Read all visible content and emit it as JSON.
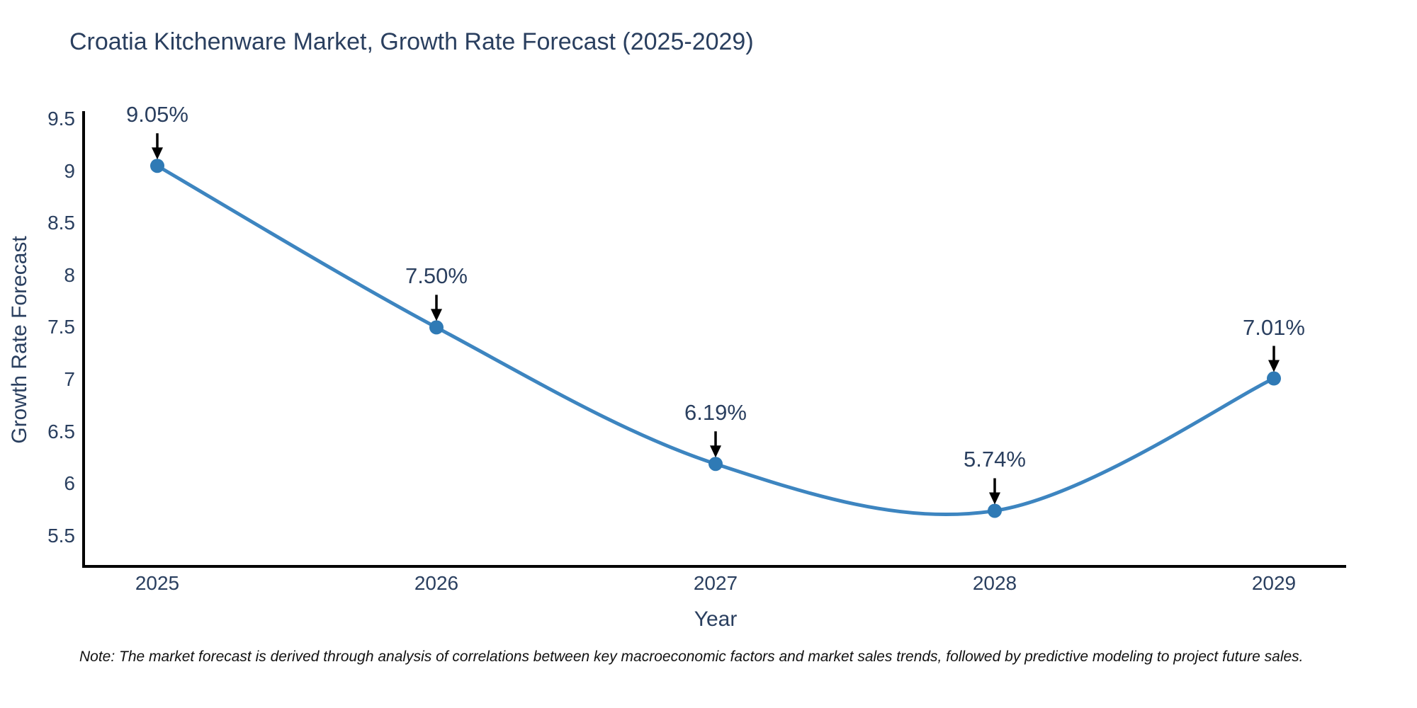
{
  "chart_data": {
    "type": "line",
    "title": "Croatia Kitchenware Market, Growth Rate Forecast (2025-2029)",
    "xlabel": "Year",
    "ylabel": "Growth Rate Forecast",
    "line_shape": "spline",
    "grid": false,
    "legend": "none",
    "x": [
      2025,
      2026,
      2027,
      2028,
      2029
    ],
    "points": [
      {
        "x": 2025,
        "y": 9.05,
        "label": "9.05%"
      },
      {
        "x": 2026,
        "y": 7.5,
        "label": "7.50%"
      },
      {
        "x": 2027,
        "y": 6.19,
        "label": "6.19%"
      },
      {
        "x": 2028,
        "y": 5.74,
        "label": "5.74%"
      },
      {
        "x": 2029,
        "y": 7.01,
        "label": "7.01%"
      }
    ],
    "xtick_labels": [
      "2025",
      "2026",
      "2027",
      "2028",
      "2029"
    ],
    "ytick_values": [
      9.5,
      9,
      8.5,
      8,
      7.5,
      7,
      6.5,
      6,
      5.5
    ],
    "ytick_labels": [
      "9.5",
      "9",
      "8.5",
      "8",
      "7.5",
      "7",
      "6.5",
      "6",
      "5.5"
    ],
    "ylim": [
      5.2,
      9.57
    ],
    "colors": {
      "line": "#3d85c0",
      "marker": "#2f7ab5",
      "axis": "#000000",
      "arrow": "#000000",
      "text": "#2a3f5f"
    }
  },
  "footnote": "Note: The market forecast is derived through analysis of correlations between key macroeconomic factors and market sales trends, followed by predictive modeling to project future sales."
}
